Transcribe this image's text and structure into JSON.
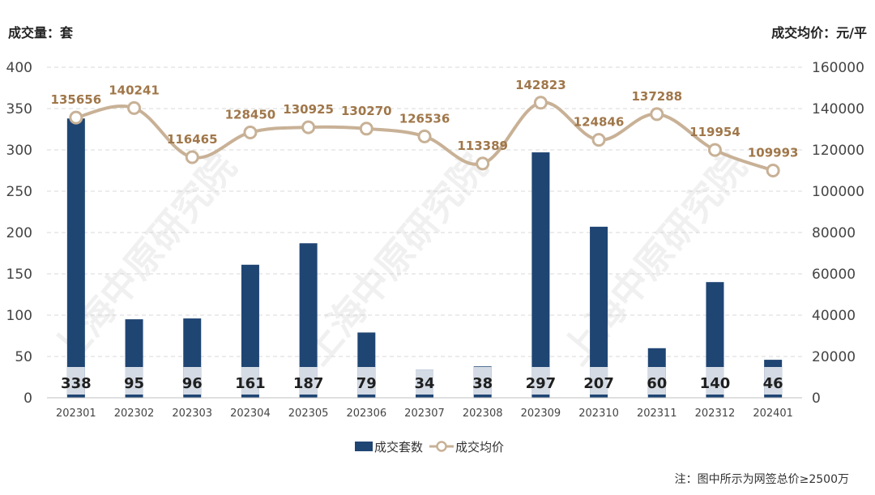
{
  "chart_data": {
    "type": "bar",
    "categories": [
      "202301",
      "202302",
      "202303",
      "202304",
      "202305",
      "202306",
      "202307",
      "202308",
      "202309",
      "202310",
      "202311",
      "202312",
      "202401"
    ],
    "series": [
      {
        "name": "成交套数",
        "type": "bar",
        "axis": "left",
        "values": [
          338,
          95,
          96,
          161,
          187,
          79,
          34,
          38,
          297,
          207,
          60,
          140,
          46
        ]
      },
      {
        "name": "成交均价",
        "type": "line",
        "axis": "right",
        "values": [
          135656,
          140241,
          116465,
          128450,
          130925,
          130270,
          126536,
          113389,
          142823,
          124846,
          137288,
          119954,
          109993
        ]
      }
    ],
    "left_axis": {
      "title": "成交量：套",
      "ylim": [
        0,
        400
      ],
      "ticks": [
        0,
        50,
        100,
        150,
        200,
        250,
        300,
        350,
        400
      ]
    },
    "right_axis": {
      "title": "成交均价：元/平",
      "ylim": [
        0,
        160000
      ],
      "ticks": [
        0,
        20000,
        40000,
        60000,
        80000,
        100000,
        120000,
        140000,
        160000
      ]
    },
    "grid": true,
    "legend_position": "bottom",
    "colors": {
      "bar": "#1f4573",
      "line": "#c8b196",
      "line_label": "#a0774a",
      "label_band": "#d4dbe5"
    },
    "watermark": "上海中原研究院",
    "note": "注：图中所示为网签总价≥2500万"
  }
}
